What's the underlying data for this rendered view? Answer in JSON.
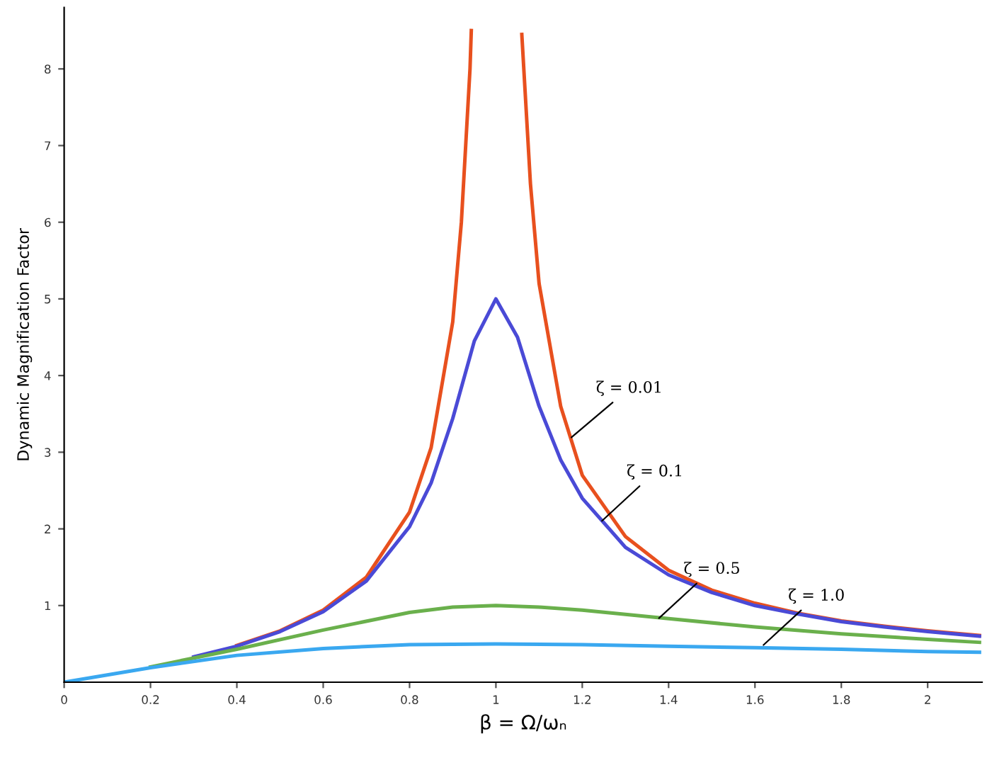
{
  "chart_data": {
    "type": "line",
    "xlabel": "β = Ω/ωₙ",
    "ylabel": "Dynamic Magnification Factor",
    "xlim": [
      0,
      2.126
    ],
    "ylim": [
      0,
      8.8
    ],
    "xticks": [
      0,
      0.2,
      0.4,
      0.6,
      0.8,
      1,
      1.2,
      1.4,
      1.6,
      1.8,
      2
    ],
    "yticks": [
      1,
      2,
      3,
      4,
      5,
      6,
      7,
      8
    ],
    "grid": false,
    "legend": false,
    "marker": "none",
    "line_style": "solid",
    "series": [
      {
        "color": "#e8501e",
        "x": [
          0.4,
          0.5,
          0.6,
          0.7,
          0.8,
          0.85,
          0.9,
          0.92,
          0.94,
          0.943,
          1.0,
          1.06,
          1.08,
          1.1,
          1.15,
          1.2,
          1.3,
          1.4,
          1.5,
          1.6,
          1.7,
          1.8,
          1.9,
          2.0,
          2.12
        ],
        "values": [
          0.48,
          0.67,
          0.94,
          1.37,
          2.22,
          3.06,
          4.7,
          6.0,
          8.0,
          8.5,
          null,
          8.45,
          6.5,
          5.2,
          3.6,
          2.7,
          1.9,
          1.46,
          1.2,
          1.03,
          0.9,
          0.8,
          0.73,
          0.67,
          0.61
        ]
      },
      {
        "color": "#4a4ad6",
        "x": [
          0.3,
          0.4,
          0.5,
          0.6,
          0.7,
          0.8,
          0.85,
          0.9,
          0.95,
          1.0,
          1.05,
          1.1,
          1.15,
          1.2,
          1.3,
          1.4,
          1.5,
          1.6,
          1.7,
          1.8,
          1.9,
          2.0,
          2.12
        ],
        "values": [
          0.33,
          0.47,
          0.66,
          0.92,
          1.32,
          2.03,
          2.6,
          3.44,
          4.45,
          5,
          4.5,
          3.6,
          2.9,
          2.4,
          1.76,
          1.4,
          1.17,
          1.0,
          0.89,
          0.79,
          0.72,
          0.66,
          0.6
        ]
      },
      {
        "color": "#6ab04c",
        "x": [
          0.2,
          0.4,
          0.6,
          0.8,
          0.9,
          1.0,
          1.1,
          1.2,
          1.4,
          1.6,
          1.8,
          2.0,
          2.12
        ],
        "values": [
          0.2,
          0.43,
          0.68,
          0.91,
          0.98,
          1,
          0.98,
          0.94,
          0.83,
          0.72,
          0.63,
          0.56,
          0.52
        ]
      },
      {
        "color": "#3aa8f0",
        "x": [
          0,
          0.2,
          0.4,
          0.6,
          0.8,
          1.0,
          1.2,
          1.4,
          1.6,
          1.8,
          2.0,
          2.12
        ],
        "values": [
          0,
          0.19,
          0.35,
          0.44,
          0.49,
          0.5,
          0.49,
          0.47,
          0.45,
          0.43,
          0.4,
          0.39
        ]
      }
    ],
    "annotations": [
      {
        "text": "ζ = 0.01",
        "x": 1.168,
        "y": 3.16
      },
      {
        "text": "ζ = 0.1",
        "x": 1.239,
        "y": 2.07
      },
      {
        "text": "ζ = 0.5",
        "x": 1.371,
        "y": 0.8
      },
      {
        "text": "ζ = 1.0",
        "x": 1.613,
        "y": 0.45
      }
    ]
  }
}
